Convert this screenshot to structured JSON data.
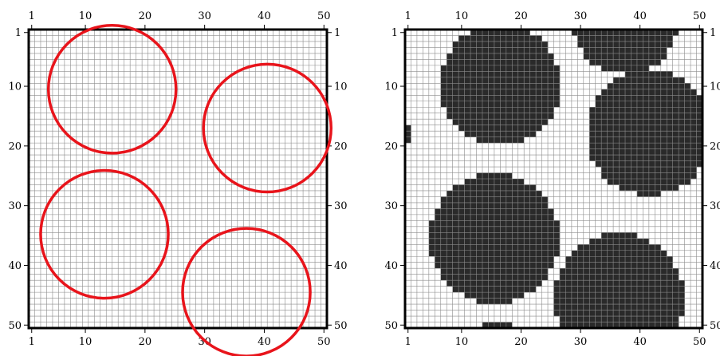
{
  "grid_size": 50,
  "axis_ticks": [
    1,
    10,
    20,
    30,
    40,
    50
  ],
  "colors": {
    "grid_line": "#8c8c8c",
    "frame": "#000000",
    "circle_outline": "#e8141b",
    "filled_cell": "#2a2a2a",
    "empty_cell": "#ffffff"
  },
  "panels": [
    {
      "id": "left",
      "style": "circle-outlines",
      "circles": [
        {
          "center_x": 14.5,
          "center_y": 10.5,
          "radius": 10.7
        },
        {
          "center_x": 40.5,
          "center_y": 17.0,
          "radius": 10.7
        },
        {
          "center_x": 13.2,
          "center_y": 34.8,
          "radius": 10.7
        },
        {
          "center_x": 37.0,
          "center_y": 44.5,
          "radius": 10.7
        }
      ]
    },
    {
      "id": "right",
      "style": "filled-cells",
      "circles": [
        {
          "center_x": 16.5,
          "center_y": 9.8,
          "radius": 10.2
        },
        {
          "center_x": 37.5,
          "center_y": -1.0,
          "radius": 9.0
        },
        {
          "center_x": 41.5,
          "center_y": 17.8,
          "radius": 10.5
        },
        {
          "center_x": 15.5,
          "center_y": 35.5,
          "radius": 10.8
        },
        {
          "center_x": 36.5,
          "center_y": 45.5,
          "radius": 10.8
        },
        {
          "center_x": 16.0,
          "center_y": 60.5,
          "radius": 10.8
        },
        {
          "center_x": -8.5,
          "center_y": 18.0,
          "radius": 9.6
        }
      ]
    }
  ]
}
